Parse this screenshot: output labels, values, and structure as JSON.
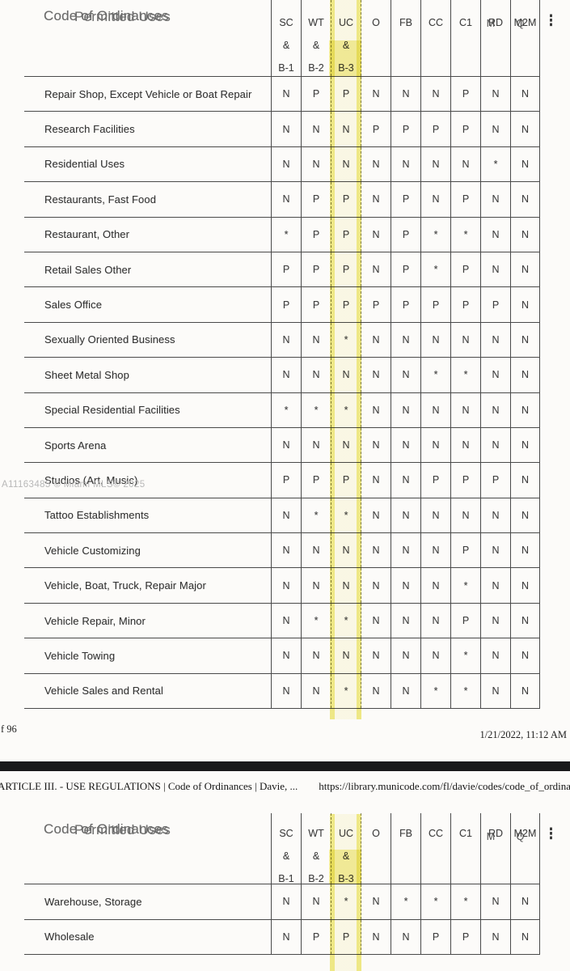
{
  "document": {
    "table_title_layer1": "Code of Ordinances",
    "table_title_layer2": "Permitted Uses",
    "more_icon": "⋮"
  },
  "columns": [
    {
      "line1": "SC",
      "line2": "&",
      "line3": "B-1"
    },
    {
      "line1": "WT",
      "line2": "&",
      "line3": "B-2"
    },
    {
      "line1": "UC",
      "line2": "&",
      "line3": "B-3",
      "highlight": "yellow"
    },
    {
      "line1": "O"
    },
    {
      "line1": "FB"
    },
    {
      "line1": "CC"
    },
    {
      "line1": "C1"
    },
    {
      "line1": "RD",
      "ghost": "M"
    },
    {
      "line1": "M2M",
      "ghost": "Q"
    }
  ],
  "table1": {
    "rows": [
      {
        "label": "Repair Shop, Except Vehicle or Boat Repair",
        "values": [
          "N",
          "P",
          "P",
          "N",
          "N",
          "N",
          "P",
          "N",
          "N"
        ]
      },
      {
        "label": "Research Facilities",
        "values": [
          "N",
          "N",
          "N",
          "P",
          "P",
          "P",
          "P",
          "N",
          "N"
        ]
      },
      {
        "label": "Residential Uses",
        "values": [
          "N",
          "N",
          "N",
          "N",
          "N",
          "N",
          "N",
          "*",
          "N"
        ]
      },
      {
        "label": "Restaurants, Fast Food",
        "values": [
          "N",
          "P",
          "P",
          "N",
          "P",
          "N",
          "P",
          "N",
          "N"
        ]
      },
      {
        "label": "Restaurant, Other",
        "values": [
          "*",
          "P",
          "P",
          "N",
          "P",
          "*",
          "*",
          "N",
          "N"
        ]
      },
      {
        "label": "Retail Sales Other",
        "values": [
          "P",
          "P",
          "P",
          "N",
          "P",
          "*",
          "P",
          "N",
          "N"
        ]
      },
      {
        "label": "Sales Office",
        "values": [
          "P",
          "P",
          "P",
          "P",
          "P",
          "P",
          "P",
          "P",
          "N"
        ]
      },
      {
        "label": "Sexually Oriented Business",
        "values": [
          "N",
          "N",
          "*",
          "N",
          "N",
          "N",
          "N",
          "N",
          "N"
        ]
      },
      {
        "label": "Sheet Metal Shop",
        "values": [
          "N",
          "N",
          "N",
          "N",
          "N",
          "*",
          "*",
          "N",
          "N"
        ]
      },
      {
        "label": "Special Residential Facilities",
        "values": [
          "*",
          "*",
          "*",
          "N",
          "N",
          "N",
          "N",
          "N",
          "N"
        ]
      },
      {
        "label": "Sports Arena",
        "values": [
          "N",
          "N",
          "N",
          "N",
          "N",
          "N",
          "N",
          "N",
          "N"
        ]
      },
      {
        "label": "Studios (Art, Music)",
        "values": [
          "P",
          "P",
          "P",
          "N",
          "N",
          "P",
          "P",
          "P",
          "N"
        ]
      },
      {
        "label": "Tattoo Establishments",
        "values": [
          "N",
          "*",
          "*",
          "N",
          "N",
          "N",
          "N",
          "N",
          "N"
        ]
      },
      {
        "label": "Vehicle Customizing",
        "values": [
          "N",
          "N",
          "N",
          "N",
          "N",
          "N",
          "P",
          "N",
          "N"
        ]
      },
      {
        "label": "Vehicle, Boat, Truck, Repair Major",
        "values": [
          "N",
          "N",
          "N",
          "N",
          "N",
          "N",
          "*",
          "N",
          "N"
        ]
      },
      {
        "label": "Vehicle Repair, Minor",
        "values": [
          "N",
          "*",
          "*",
          "N",
          "N",
          "N",
          "P",
          "N",
          "N"
        ]
      },
      {
        "label": "Vehicle Towing",
        "values": [
          "N",
          "N",
          "N",
          "N",
          "N",
          "N",
          "*",
          "N",
          "N"
        ]
      },
      {
        "label": "Vehicle Sales and Rental",
        "values": [
          "N",
          "N",
          "*",
          "N",
          "N",
          "*",
          "*",
          "N",
          "N"
        ]
      }
    ]
  },
  "watermark": "A11163485 © Miami MLS© 2025",
  "page1_footer": {
    "page_info": "f 96",
    "timestamp": "1/21/2022, 11:12 AM"
  },
  "page2_header": {
    "title": "ARTICLE III. - USE REGULATIONS | Code of Ordinances | Davie, ...",
    "url": "https://library.municode.com/fl/davie/codes/code_of_ordinances?no"
  },
  "table2": {
    "rows": [
      {
        "label": "Warehouse, Storage",
        "values": [
          "N",
          "N",
          "*",
          "N",
          "*",
          "*",
          "*",
          "N",
          "N"
        ]
      },
      {
        "label": "Wholesale",
        "values": [
          "N",
          "P",
          "P",
          "N",
          "N",
          "P",
          "P",
          "N",
          "N"
        ]
      }
    ]
  },
  "highlight_color": "#f2eb87",
  "separator_color": "#19191b"
}
